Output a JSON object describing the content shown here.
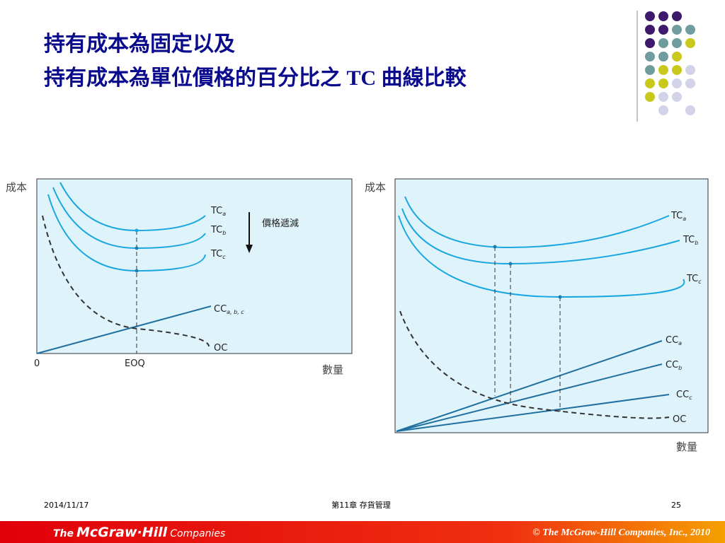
{
  "title": {
    "line1": "持有成本為固定以及",
    "line2": "持有成本為單位價格的百分比之 TC 曲線比較"
  },
  "left_diagram": {
    "y_label": "成本",
    "x_label": "數量",
    "origin": "0",
    "eoq": "EOQ",
    "arrow_label": "價格遞減",
    "tc_a": {
      "main": "TC",
      "sub": "a"
    },
    "tc_b": {
      "main": "TC",
      "sub": "b"
    },
    "tc_c": {
      "main": "TC",
      "sub": "c"
    },
    "cc": {
      "main": "CC",
      "sub": "a, b, c"
    },
    "oc": "OC"
  },
  "right_diagram": {
    "y_label": "成本",
    "x_label": "數量",
    "tc_a": {
      "main": "TC",
      "sub": "a"
    },
    "tc_b": {
      "main": "TC",
      "sub": "b"
    },
    "tc_c": {
      "main": "TC",
      "sub": "c"
    },
    "cc_a": {
      "main": "CC",
      "sub": "a"
    },
    "cc_b": {
      "main": "CC",
      "sub": "b"
    },
    "cc_c": {
      "main": "CC",
      "sub": "c"
    },
    "oc": "OC"
  },
  "footer": {
    "date": "2014/11/17",
    "chapter": "第11章 存貨管理",
    "page": "25",
    "logo": {
      "the": "The",
      "brand": "McGraw·Hill",
      "companies": "Companies"
    },
    "copyright": "© The McGraw-Hill Companies, Inc., 2010"
  }
}
